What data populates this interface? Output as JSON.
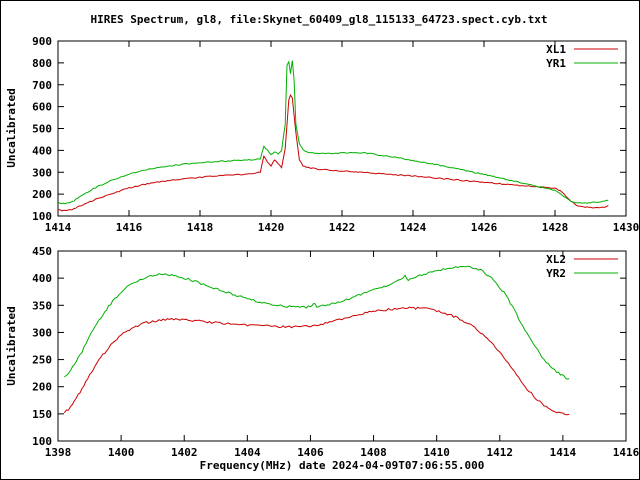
{
  "title": "HIRES Spectrum, gl8, file:Skynet_60409_gl8_115133_64723.spect.cyb.txt",
  "xlabel": "Frequency(MHz) date 2024-04-09T07:06:55.000",
  "colors": {
    "red_series": "#cc0000",
    "green_series": "#00b000",
    "axis": "#000000"
  },
  "chart_data": [
    {
      "type": "line",
      "title": "",
      "ylabel": "Uncalibrated",
      "xlim": [
        1414,
        1430
      ],
      "ylim": [
        100,
        900
      ],
      "xtick_step": 2,
      "ytick_step": 100,
      "grid": false,
      "legend_position": "top-right",
      "noise_amplitude": 2.5,
      "series": [
        {
          "name": "XL1",
          "color": "#cc0000",
          "points": [
            [
              1414.0,
              128
            ],
            [
              1414.2,
              124
            ],
            [
              1414.4,
              130
            ],
            [
              1414.6,
              145
            ],
            [
              1414.8,
              158
            ],
            [
              1415.0,
              172
            ],
            [
              1415.3,
              190
            ],
            [
              1415.6,
              207
            ],
            [
              1416.0,
              228
            ],
            [
              1416.4,
              243
            ],
            [
              1416.8,
              254
            ],
            [
              1417.2,
              263
            ],
            [
              1417.6,
              270
            ],
            [
              1418.0,
              277
            ],
            [
              1418.4,
              283
            ],
            [
              1418.8,
              287
            ],
            [
              1419.2,
              289
            ],
            [
              1419.5,
              292
            ],
            [
              1419.7,
              300
            ],
            [
              1419.8,
              375
            ],
            [
              1419.9,
              345
            ],
            [
              1420.0,
              330
            ],
            [
              1420.1,
              358
            ],
            [
              1420.2,
              338
            ],
            [
              1420.3,
              322
            ],
            [
              1420.4,
              410
            ],
            [
              1420.5,
              630
            ],
            [
              1420.55,
              655
            ],
            [
              1420.6,
              640
            ],
            [
              1420.7,
              480
            ],
            [
              1420.8,
              355
            ],
            [
              1420.9,
              330
            ],
            [
              1421.0,
              322
            ],
            [
              1421.3,
              315
            ],
            [
              1421.6,
              310
            ],
            [
              1422.0,
              306
            ],
            [
              1422.5,
              300
            ],
            [
              1423.0,
              294
            ],
            [
              1423.5,
              289
            ],
            [
              1424.0,
              283
            ],
            [
              1424.5,
              276
            ],
            [
              1425.0,
              269
            ],
            [
              1425.5,
              261
            ],
            [
              1426.0,
              254
            ],
            [
              1426.5,
              247
            ],
            [
              1427.0,
              240
            ],
            [
              1427.5,
              233
            ],
            [
              1428.0,
              226
            ],
            [
              1428.2,
              210
            ],
            [
              1428.4,
              175
            ],
            [
              1428.6,
              150
            ],
            [
              1428.8,
              142
            ],
            [
              1429.0,
              139
            ],
            [
              1429.2,
              137
            ],
            [
              1429.4,
              140
            ],
            [
              1429.5,
              148
            ]
          ]
        },
        {
          "name": "YR1",
          "color": "#00b000",
          "points": [
            [
              1414.0,
              162
            ],
            [
              1414.2,
              156
            ],
            [
              1414.4,
              165
            ],
            [
              1414.6,
              185
            ],
            [
              1414.8,
              205
            ],
            [
              1415.0,
              225
            ],
            [
              1415.3,
              248
            ],
            [
              1415.6,
              268
            ],
            [
              1416.0,
              292
            ],
            [
              1416.4,
              308
            ],
            [
              1416.8,
              320
            ],
            [
              1417.2,
              330
            ],
            [
              1417.6,
              338
            ],
            [
              1418.0,
              344
            ],
            [
              1418.4,
              349
            ],
            [
              1418.8,
              352
            ],
            [
              1419.2,
              355
            ],
            [
              1419.5,
              357
            ],
            [
              1419.7,
              362
            ],
            [
              1419.8,
              420
            ],
            [
              1419.9,
              400
            ],
            [
              1420.0,
              380
            ],
            [
              1420.1,
              395
            ],
            [
              1420.2,
              385
            ],
            [
              1420.3,
              400
            ],
            [
              1420.4,
              520
            ],
            [
              1420.45,
              790
            ],
            [
              1420.5,
              805
            ],
            [
              1420.55,
              750
            ],
            [
              1420.6,
              810
            ],
            [
              1420.65,
              720
            ],
            [
              1420.7,
              520
            ],
            [
              1420.8,
              430
            ],
            [
              1420.9,
              402
            ],
            [
              1421.0,
              392
            ],
            [
              1421.3,
              386
            ],
            [
              1421.6,
              385
            ],
            [
              1422.0,
              388
            ],
            [
              1422.3,
              391
            ],
            [
              1422.6,
              389
            ],
            [
              1423.0,
              380
            ],
            [
              1423.5,
              368
            ],
            [
              1424.0,
              354
            ],
            [
              1424.5,
              340
            ],
            [
              1425.0,
              324
            ],
            [
              1425.5,
              307
            ],
            [
              1426.0,
              290
            ],
            [
              1426.5,
              272
            ],
            [
              1427.0,
              254
            ],
            [
              1427.5,
              236
            ],
            [
              1428.0,
              217
            ],
            [
              1428.2,
              196
            ],
            [
              1428.4,
              172
            ],
            [
              1428.6,
              160
            ],
            [
              1428.8,
              158
            ],
            [
              1429.0,
              161
            ],
            [
              1429.2,
              163
            ],
            [
              1429.4,
              168
            ],
            [
              1429.5,
              172
            ]
          ]
        }
      ]
    },
    {
      "type": "line",
      "title": "",
      "ylabel": "Uncalibrated",
      "xlim": [
        1398,
        1416
      ],
      "ylim": [
        100,
        450
      ],
      "xtick_step": 2,
      "ytick_step": 50,
      "grid": false,
      "legend_position": "top-right",
      "noise_amplitude": 2.0,
      "series": [
        {
          "name": "XL2",
          "color": "#cc0000",
          "points": [
            [
              1398.2,
              152
            ],
            [
              1398.4,
              162
            ],
            [
              1398.7,
              190
            ],
            [
              1399.0,
              222
            ],
            [
              1399.3,
              250
            ],
            [
              1399.6,
              272
            ],
            [
              1400.0,
              296
            ],
            [
              1400.4,
              310
            ],
            [
              1400.8,
              318
            ],
            [
              1401.2,
              322
            ],
            [
              1401.6,
              324
            ],
            [
              1402.0,
              323
            ],
            [
              1402.4,
              321
            ],
            [
              1402.8,
              319
            ],
            [
              1403.2,
              317
            ],
            [
              1403.6,
              315
            ],
            [
              1404.0,
              313
            ],
            [
              1404.4,
              312
            ],
            [
              1404.8,
              311
            ],
            [
              1405.2,
              310
            ],
            [
              1405.6,
              310
            ],
            [
              1406.0,
              312
            ],
            [
              1406.4,
              316
            ],
            [
              1406.8,
              322
            ],
            [
              1407.2,
              328
            ],
            [
              1407.6,
              334
            ],
            [
              1408.0,
              339
            ],
            [
              1408.4,
              342
            ],
            [
              1408.8,
              344
            ],
            [
              1409.2,
              345
            ],
            [
              1409.6,
              344
            ],
            [
              1410.0,
              340
            ],
            [
              1410.4,
              333
            ],
            [
              1410.8,
              323
            ],
            [
              1411.2,
              309
            ],
            [
              1411.6,
              290
            ],
            [
              1412.0,
              263
            ],
            [
              1412.4,
              232
            ],
            [
              1412.8,
              200
            ],
            [
              1413.2,
              175
            ],
            [
              1413.6,
              158
            ],
            [
              1414.0,
              150
            ],
            [
              1414.2,
              149
            ]
          ]
        },
        {
          "name": "YR2",
          "color": "#00b000",
          "points": [
            [
              1398.2,
              218
            ],
            [
              1398.4,
              230
            ],
            [
              1398.7,
              258
            ],
            [
              1399.0,
              292
            ],
            [
              1399.3,
              322
            ],
            [
              1399.6,
              348
            ],
            [
              1400.0,
              375
            ],
            [
              1400.4,
              392
            ],
            [
              1400.8,
              402
            ],
            [
              1401.2,
              407
            ],
            [
              1401.6,
              405
            ],
            [
              1402.0,
              400
            ],
            [
              1402.4,
              393
            ],
            [
              1402.8,
              385
            ],
            [
              1403.2,
              377
            ],
            [
              1403.6,
              369
            ],
            [
              1404.0,
              362
            ],
            [
              1404.4,
              356
            ],
            [
              1404.8,
              351
            ],
            [
              1405.2,
              348
            ],
            [
              1405.6,
              346
            ],
            [
              1406.0,
              347
            ],
            [
              1406.1,
              355
            ],
            [
              1406.2,
              348
            ],
            [
              1406.6,
              352
            ],
            [
              1407.0,
              358
            ],
            [
              1407.4,
              366
            ],
            [
              1407.8,
              374
            ],
            [
              1408.2,
              382
            ],
            [
              1408.6,
              390
            ],
            [
              1409.0,
              404
            ],
            [
              1409.1,
              397
            ],
            [
              1409.4,
              404
            ],
            [
              1409.8,
              410
            ],
            [
              1410.2,
              416
            ],
            [
              1410.6,
              420
            ],
            [
              1411.0,
              421
            ],
            [
              1411.4,
              415
            ],
            [
              1411.8,
              398
            ],
            [
              1412.2,
              368
            ],
            [
              1412.6,
              326
            ],
            [
              1413.0,
              284
            ],
            [
              1413.4,
              250
            ],
            [
              1413.8,
              228
            ],
            [
              1414.1,
              216
            ],
            [
              1414.2,
              215
            ]
          ]
        }
      ]
    }
  ]
}
